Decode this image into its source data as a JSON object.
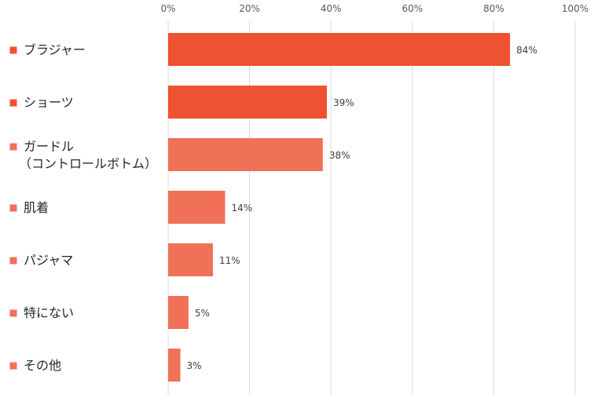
{
  "chart_data": {
    "type": "bar",
    "orientation": "horizontal",
    "categories": [
      [
        "ブラジャー"
      ],
      [
        "ショーツ"
      ],
      [
        "ガードル",
        "（コントロールボトム）"
      ],
      [
        "肌着"
      ],
      [
        "パジャマ"
      ],
      [
        "特にない"
      ],
      [
        "その他"
      ]
    ],
    "values": [
      84,
      39,
      38,
      14,
      11,
      5,
      3
    ],
    "value_labels": [
      "84%",
      "39%",
      "38%",
      "14%",
      "11%",
      "5%",
      "3%"
    ],
    "bar_colors": [
      "#EE5230",
      "#EE5230",
      "#F07058",
      "#F07058",
      "#F07058",
      "#F07058",
      "#F07058"
    ],
    "marker_colors": [
      "#EE5230",
      "#EE5230",
      "#F07058",
      "#F07058",
      "#F07058",
      "#F07058",
      "#F07058"
    ],
    "xlim": [
      0,
      100
    ],
    "x_ticks": [
      0,
      20,
      40,
      60,
      80,
      100
    ],
    "x_tick_labels": [
      "0%",
      "20%",
      "40%",
      "60%",
      "80%",
      "100%"
    ],
    "x_axis_position": "top",
    "grid": true,
    "grid_color": "#D9D9D9",
    "legend": "none",
    "title": "",
    "xlabel": "",
    "ylabel": ""
  }
}
